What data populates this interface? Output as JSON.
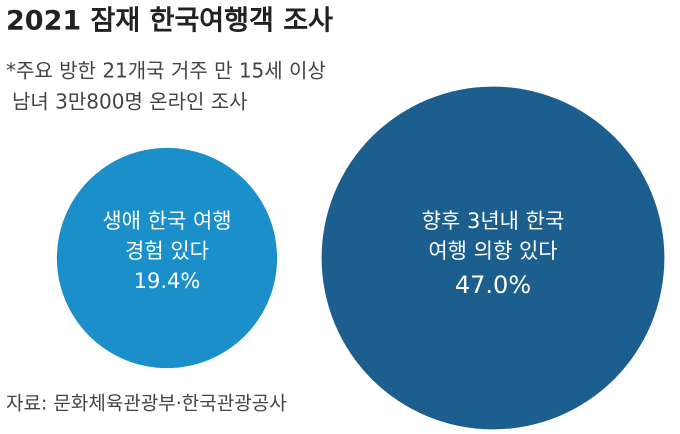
{
  "chart_data": {
    "type": "bubble",
    "title": "2021 잠재 한국여행객 조사",
    "subtitle": [
      "*주요 방한 21개국 거주 만 15세 이상",
      "남녀 3만800명 온라인 조사"
    ],
    "categories": [
      [
        "생애 한국 여행",
        "경험 있다"
      ],
      [
        "향후 3년내 한국",
        "여행 의향 있다"
      ]
    ],
    "values": [
      19.4,
      47.0
    ],
    "value_labels": [
      "19.4%",
      "47.0%"
    ],
    "colors": [
      "#1a8fc9",
      "#1c5f8f"
    ],
    "source": "자료: 문화체육관광부·한국관광공사"
  }
}
